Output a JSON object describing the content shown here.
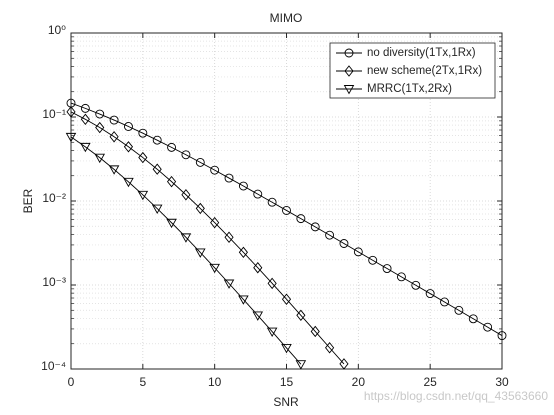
{
  "chart_data": {
    "type": "line",
    "title": "MIMO",
    "x_label": "SNR",
    "y_label": "BER",
    "x": [
      0,
      1,
      2,
      3,
      4,
      5,
      6,
      7,
      8,
      9,
      10,
      11,
      12,
      13,
      14,
      15,
      16,
      17,
      18,
      19,
      20,
      21,
      22,
      23,
      24,
      25,
      26,
      27,
      28,
      29,
      30
    ],
    "series": [
      {
        "name": "no diversity(1Tx,1Rx)",
        "color": "#000000",
        "marker": "circle",
        "values": [
          0.1464,
          0.1267,
          0.1085,
          0.0919,
          0.0771,
          0.0642,
          0.053,
          0.0435,
          0.0355,
          0.0288,
          0.0233,
          0.01875,
          0.01507,
          0.01208,
          0.00967,
          0.00772,
          0.00617,
          0.00492,
          0.00392,
          0.00312,
          0.00248,
          0.00197,
          0.00157,
          0.00125,
          0.000992,
          0.000791,
          0.000628,
          0.000499,
          0.000396,
          0.000315,
          0.00025
        ]
      },
      {
        "name": "new scheme(2Tx,1Rx)",
        "color": "#000000",
        "marker": "diamond",
        "values": [
          0.1151,
          0.0939,
          0.0749,
          0.0582,
          0.0442,
          0.0329,
          0.0239,
          0.017,
          0.01187,
          0.00816,
          0.00553,
          0.0037,
          0.00245,
          0.001606,
          0.001046,
          0.000677,
          0.000436,
          0.00028,
          0.000179,
          0.000115,
          null,
          null,
          null,
          null,
          null,
          null,
          null,
          null,
          null,
          null,
          null
        ]
      },
      {
        "name": "MRRC(1Tx,2Rx)",
        "color": "#000000",
        "marker": "triangle-down",
        "values": [
          0.058,
          0.0441,
          0.0328,
          0.0238,
          0.0169,
          0.01184,
          0.00813,
          0.00551,
          0.00369,
          0.00244,
          0.0016,
          0.001042,
          0.000674,
          0.000434,
          0.000279,
          0.000178,
          0.000114,
          null,
          null,
          null,
          null,
          null,
          null,
          null,
          null,
          null,
          null,
          null,
          null,
          null,
          null
        ]
      }
    ],
    "xlim": [
      0,
      30
    ],
    "xticks": [
      0,
      5,
      10,
      15,
      20,
      25,
      30
    ],
    "ylim": [
      0.0001,
      1
    ],
    "y_scale": "log",
    "yticks": [
      {
        "value": 0.0001,
        "label": "10⁻⁴"
      },
      {
        "value": 0.001,
        "label": "10⁻³"
      },
      {
        "value": 0.01,
        "label": "10⁻²"
      },
      {
        "value": 0.1,
        "label": "10⁻¹"
      },
      {
        "value": 1,
        "label": "10⁰"
      }
    ],
    "grid": true,
    "minor_grid": true,
    "legend": "northeast",
    "watermark": "https://blog.csdn.net/qq_43563660"
  }
}
